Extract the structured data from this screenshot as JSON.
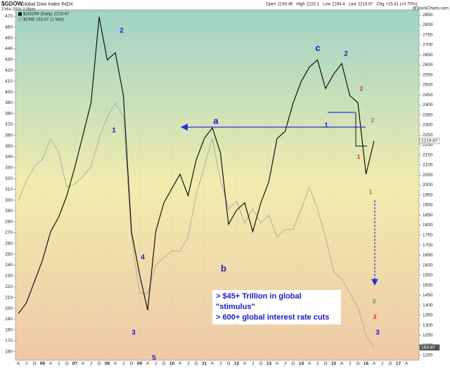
{
  "chart_data": {
    "type": "line",
    "symbol": "$GDOW",
    "title": "Global Dow Index INDX",
    "timestamp": "2-Mar-2016 3:38pm",
    "quote": [
      {
        "label": "Open",
        "value": 2194.46
      },
      {
        "label": "High",
        "value": 2220.1
      },
      {
        "label": "Low",
        "value": 2194.4
      },
      {
        "label": "Last",
        "value": 2219.67
      },
      {
        "label": "Chg",
        "value": "+15.41 (+0.70%)"
      }
    ],
    "source": "@StockCharts.com",
    "categories": [
      "A",
      "J",
      "O",
      "06",
      "A",
      "J",
      "O",
      "07",
      "A",
      "J",
      "O",
      "08",
      "A",
      "J",
      "O",
      "09",
      "A",
      "J",
      "O",
      "10",
      "A",
      "J",
      "O",
      "11",
      "A",
      "J",
      "O",
      "12",
      "A",
      "J",
      "O",
      "13",
      "A",
      "J",
      "O",
      "14",
      "A",
      "J",
      "O",
      "15",
      "A",
      "J",
      "O",
      "16",
      "A",
      "J",
      "O",
      "17",
      "A"
    ],
    "series": [
      {
        "name": "$CRB",
        "note": "(1 Mar)",
        "color": "#a8a8a8",
        "axis": "y",
        "values": [
          299,
          318,
          331,
          338,
          357,
          344,
          312,
          315,
          322,
          331,
          357,
          377,
          390,
          377,
          266,
          214,
          214,
          240,
          247,
          253,
          253,
          266,
          305,
          331,
          357,
          318,
          292,
          299,
          279,
          292,
          279,
          286,
          266,
          273,
          273,
          292,
          312,
          292,
          266,
          234,
          227,
          214,
          201,
          175,
          163.87,
          null,
          null,
          null,
          null
        ]
      },
      {
        "name": "$GDOW (Daily)",
        "color": "#000000",
        "axis": "y2",
        "values": [
          1358,
          1411,
          1518,
          1625,
          1768,
          1840,
          1947,
          2090,
          2250,
          2411,
          2840,
          2625,
          2661,
          2447,
          1768,
          1554,
          1375,
          1768,
          1911,
          1983,
          2054,
          1947,
          2125,
          2232,
          2286,
          2161,
          1804,
          1875,
          1911,
          1768,
          1911,
          2018,
          2232,
          2268,
          2411,
          2518,
          2589,
          2625,
          2482,
          2554,
          2607,
          2447,
          2411,
          2054,
          2219.67,
          null,
          null,
          null,
          null
        ]
      }
    ],
    "ylim": [
      152,
      476
    ],
    "yticks": [
      160,
      170,
      180,
      190,
      200,
      210,
      220,
      230,
      240,
      250,
      260,
      270,
      280,
      290,
      300,
      310,
      320,
      330,
      340,
      350,
      360,
      370,
      380,
      390,
      400,
      410,
      420,
      430,
      440,
      450,
      460,
      470
    ],
    "y2lim": [
      1125,
      2875
    ],
    "y2ticks": [
      1150,
      1200,
      1250,
      1300,
      1350,
      1400,
      1450,
      1500,
      1550,
      1600,
      1650,
      1700,
      1750,
      1800,
      1850,
      1900,
      1950,
      2000,
      2050,
      2100,
      2150,
      2200,
      2250,
      2300,
      2350,
      2400,
      2450,
      2500,
      2550,
      2600,
      2650,
      2700,
      2750,
      2800,
      2850
    ],
    "annotations": [
      {
        "text": "2",
        "color": "#1a1acc"
      },
      {
        "text": "1",
        "color": "#1a1acc"
      },
      {
        "text": "4",
        "color": "#1a1acc"
      },
      {
        "text": "3",
        "color": "#1a1acc"
      },
      {
        "text": "5",
        "color": "#1a1acc"
      },
      {
        "text": "a",
        "color": "#1a1acc"
      },
      {
        "text": "b",
        "color": "#1a1acc"
      },
      {
        "text": "c",
        "color": "#1a1acc"
      },
      {
        "text": "2",
        "color": "#1a1acc"
      },
      {
        "text": "1",
        "color": "#1a1acc"
      },
      {
        "text": "2",
        "color": "#cc2222"
      },
      {
        "text": "1",
        "color": "#cc2222"
      },
      {
        "text": "2",
        "color": "#33aa33"
      },
      {
        "text": "1",
        "color": "#33aa33"
      },
      {
        "text": "3",
        "color": "#33aa33"
      },
      {
        "text": "3",
        "color": "#cc2222"
      },
      {
        "text": "3",
        "color": "#1a1acc"
      }
    ],
    "textbox": [
      "> $45+ Trillion in global",
      "\"stimulus\"",
      "> 600+ global interest rate cuts"
    ]
  }
}
